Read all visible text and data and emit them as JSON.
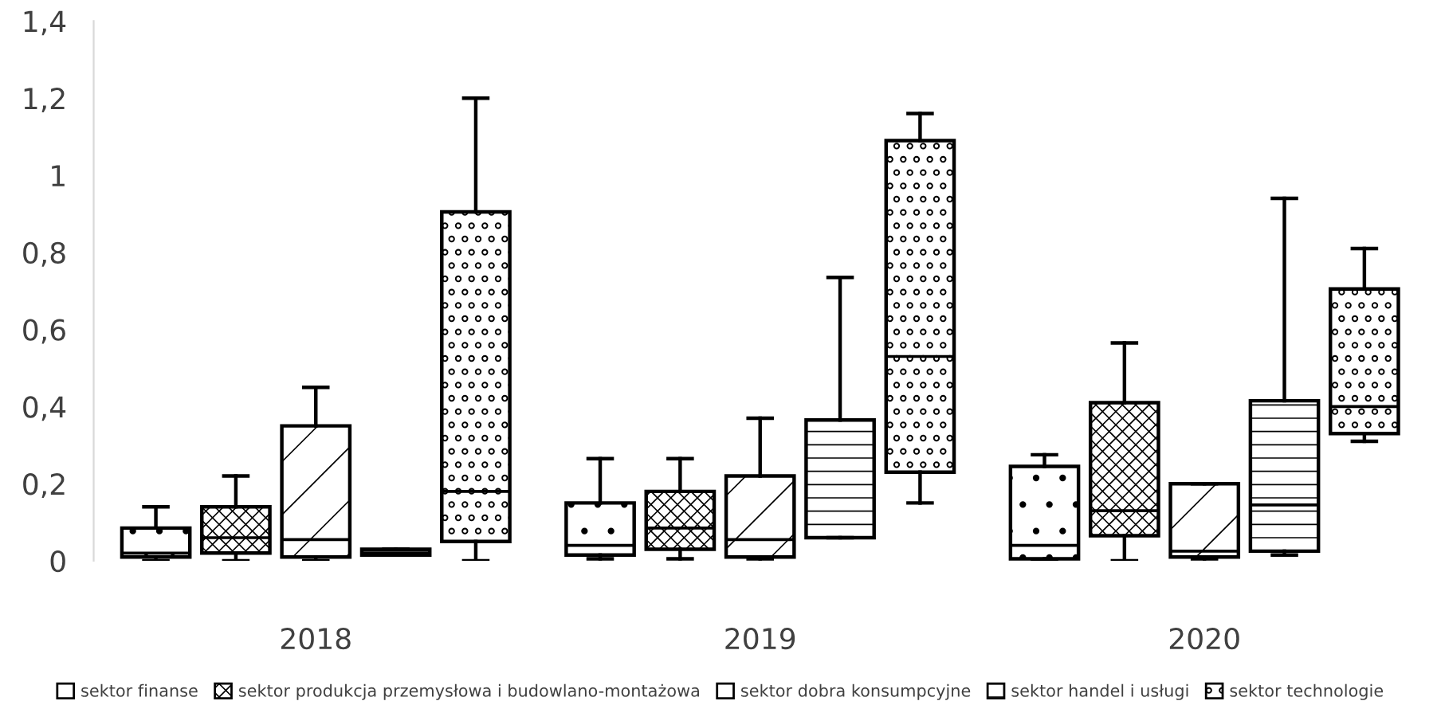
{
  "chart_data": {
    "type": "box",
    "categories": [
      "2018",
      "2019",
      "2020"
    ],
    "ylim": [
      0,
      1.4
    ],
    "yticks": [
      0,
      {
        "value": 0.2,
        "label": "0,2"
      },
      {
        "value": 0.4,
        "label": "0,4"
      },
      {
        "value": 0.6,
        "label": "0,6"
      },
      {
        "value": 0.8,
        "label": "0,8"
      },
      1,
      {
        "value": 1.2,
        "label": "1,2"
      },
      {
        "value": 1.4,
        "label": "1,4"
      }
    ],
    "grid": false,
    "legend": "bottom",
    "series": [
      {
        "name": "sektor finanse",
        "boxes": [
          {
            "low": 0,
            "q1": 0.01,
            "median": 0.02,
            "q3": 0.085,
            "high": 0.14
          },
          {
            "low": 0.005,
            "q1": 0.015,
            "median": 0.04,
            "q3": 0.15,
            "high": 0.265
          },
          {
            "low": 0,
            "q1": 0.005,
            "median": 0.04,
            "q3": 0.245,
            "high": 0.275
          }
        ]
      },
      {
        "name": "sektor produkcja przemysłowa i budowlano-montażowa",
        "boxes": [
          {
            "low": 0,
            "q1": 0.02,
            "median": 0.06,
            "q3": 0.14,
            "high": 0.22
          },
          {
            "low": 0.005,
            "q1": 0.03,
            "median": 0.085,
            "q3": 0.18,
            "high": 0.265
          },
          {
            "low": 0,
            "q1": 0.065,
            "median": 0.13,
            "q3": 0.41,
            "high": 0.565
          }
        ]
      },
      {
        "name": "sektor dobra konsumpcyjne",
        "boxes": [
          {
            "low": 0,
            "q1": 0.01,
            "median": 0.055,
            "q3": 0.35,
            "high": 0.45
          },
          {
            "low": 0.005,
            "q1": 0.01,
            "median": 0.055,
            "q3": 0.22,
            "high": 0.37
          },
          {
            "low": 0.005,
            "q1": 0.01,
            "median": 0.025,
            "q3": 0.2,
            "high": 0.2
          }
        ]
      },
      {
        "name": "sektor handel i usługi",
        "boxes": [
          {
            "low": 0.015,
            "q1": 0.015,
            "median": 0.02,
            "q3": 0.03,
            "high": 0.03
          },
          {
            "low": 0.06,
            "q1": 0.06,
            "median": 0.06,
            "q3": 0.365,
            "high": 0.735
          },
          {
            "low": 0.015,
            "q1": 0.025,
            "median": 0.145,
            "q3": 0.415,
            "high": 0.94
          }
        ]
      },
      {
        "name": "sektor technologie",
        "boxes": [
          {
            "low": 0,
            "q1": 0.05,
            "median": 0.18,
            "q3": 0.905,
            "high": 1.2
          },
          {
            "low": 0.15,
            "q1": 0.23,
            "median": 0.53,
            "q3": 1.09,
            "high": 1.16
          },
          {
            "low": 0.31,
            "q1": 0.33,
            "median": 0.4,
            "q3": 0.705,
            "high": 0.81
          }
        ]
      }
    ]
  }
}
